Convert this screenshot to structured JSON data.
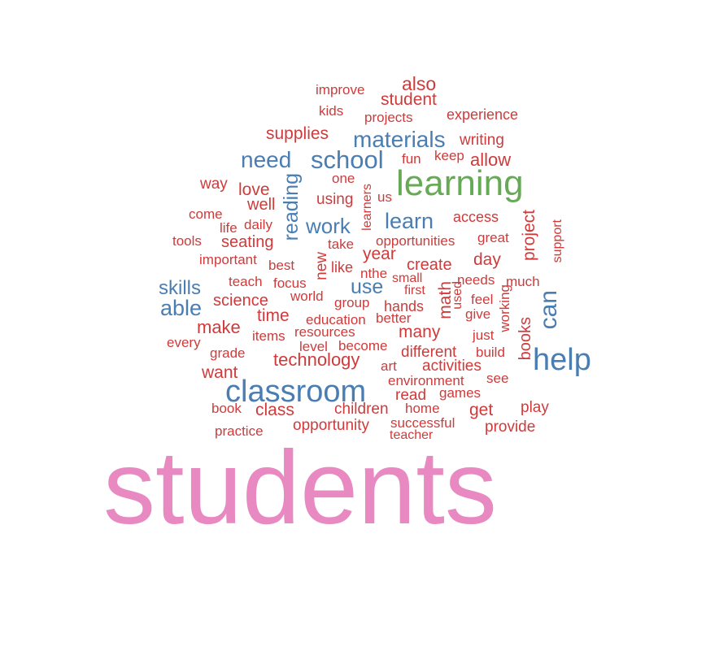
{
  "colors": {
    "top": "#e889c2",
    "high": "#66aa55",
    "mid": "#4a7eb3",
    "low": "#d03a3a",
    "background": "#ffffff"
  },
  "words": [
    {
      "text": "students",
      "tier": "top"
    },
    {
      "text": "learning",
      "tier": "high"
    },
    {
      "text": "classroom",
      "tier": "mid"
    },
    {
      "text": "help",
      "tier": "mid"
    },
    {
      "text": "school",
      "tier": "mid"
    },
    {
      "text": "materials",
      "tier": "mid"
    },
    {
      "text": "need",
      "tier": "mid"
    },
    {
      "text": "can",
      "tier": "mid"
    },
    {
      "text": "able",
      "tier": "mid"
    },
    {
      "text": "skills",
      "tier": "mid"
    },
    {
      "text": "learn",
      "tier": "mid"
    },
    {
      "text": "work",
      "tier": "mid"
    },
    {
      "text": "use",
      "tier": "mid"
    },
    {
      "text": "reading",
      "tier": "mid"
    },
    {
      "text": "also",
      "tier": "low"
    },
    {
      "text": "student",
      "tier": "low"
    },
    {
      "text": "improve",
      "tier": "low"
    },
    {
      "text": "kids",
      "tier": "low"
    },
    {
      "text": "projects",
      "tier": "low"
    },
    {
      "text": "experience",
      "tier": "low"
    },
    {
      "text": "supplies",
      "tier": "low"
    },
    {
      "text": "writing",
      "tier": "low"
    },
    {
      "text": "fun",
      "tier": "low"
    },
    {
      "text": "keep",
      "tier": "low"
    },
    {
      "text": "allow",
      "tier": "low"
    },
    {
      "text": "way",
      "tier": "low"
    },
    {
      "text": "love",
      "tier": "low"
    },
    {
      "text": "one",
      "tier": "low"
    },
    {
      "text": "well",
      "tier": "low"
    },
    {
      "text": "using",
      "tier": "low"
    },
    {
      "text": "us",
      "tier": "low"
    },
    {
      "text": "learners",
      "tier": "low"
    },
    {
      "text": "come",
      "tier": "low"
    },
    {
      "text": "life",
      "tier": "low"
    },
    {
      "text": "daily",
      "tier": "low"
    },
    {
      "text": "access",
      "tier": "low"
    },
    {
      "text": "tools",
      "tier": "low"
    },
    {
      "text": "seating",
      "tier": "low"
    },
    {
      "text": "take",
      "tier": "low"
    },
    {
      "text": "opportunities",
      "tier": "low"
    },
    {
      "text": "great",
      "tier": "low"
    },
    {
      "text": "project",
      "tier": "low"
    },
    {
      "text": "support",
      "tier": "low"
    },
    {
      "text": "important",
      "tier": "low"
    },
    {
      "text": "best",
      "tier": "low"
    },
    {
      "text": "new",
      "tier": "low"
    },
    {
      "text": "year",
      "tier": "low"
    },
    {
      "text": "like",
      "tier": "low"
    },
    {
      "text": "create",
      "tier": "low"
    },
    {
      "text": "day",
      "tier": "low"
    },
    {
      "text": "teach",
      "tier": "low"
    },
    {
      "text": "focus",
      "tier": "low"
    },
    {
      "text": "nthe",
      "tier": "low"
    },
    {
      "text": "small",
      "tier": "low"
    },
    {
      "text": "needs",
      "tier": "low"
    },
    {
      "text": "much",
      "tier": "low"
    },
    {
      "text": "science",
      "tier": "low"
    },
    {
      "text": "world",
      "tier": "low"
    },
    {
      "text": "first",
      "tier": "low"
    },
    {
      "text": "math",
      "tier": "low"
    },
    {
      "text": "feel",
      "tier": "low"
    },
    {
      "text": "time",
      "tier": "low"
    },
    {
      "text": "group",
      "tier": "low"
    },
    {
      "text": "hands",
      "tier": "low"
    },
    {
      "text": "used",
      "tier": "low"
    },
    {
      "text": "give",
      "tier": "low"
    },
    {
      "text": "working",
      "tier": "low"
    },
    {
      "text": "make",
      "tier": "low"
    },
    {
      "text": "education",
      "tier": "low"
    },
    {
      "text": "better",
      "tier": "low"
    },
    {
      "text": "books",
      "tier": "low"
    },
    {
      "text": "items",
      "tier": "low"
    },
    {
      "text": "resources",
      "tier": "low"
    },
    {
      "text": "many",
      "tier": "low"
    },
    {
      "text": "just",
      "tier": "low"
    },
    {
      "text": "every",
      "tier": "low"
    },
    {
      "text": "level",
      "tier": "low"
    },
    {
      "text": "become",
      "tier": "low"
    },
    {
      "text": "build",
      "tier": "low"
    },
    {
      "text": "grade",
      "tier": "low"
    },
    {
      "text": "technology",
      "tier": "low"
    },
    {
      "text": "different",
      "tier": "low"
    },
    {
      "text": "art",
      "tier": "low"
    },
    {
      "text": "activities",
      "tier": "low"
    },
    {
      "text": "want",
      "tier": "low"
    },
    {
      "text": "see",
      "tier": "low"
    },
    {
      "text": "environment",
      "tier": "low"
    },
    {
      "text": "read",
      "tier": "low"
    },
    {
      "text": "games",
      "tier": "low"
    },
    {
      "text": "play",
      "tier": "low"
    },
    {
      "text": "book",
      "tier": "low"
    },
    {
      "text": "class",
      "tier": "low"
    },
    {
      "text": "children",
      "tier": "low"
    },
    {
      "text": "home",
      "tier": "low"
    },
    {
      "text": "get",
      "tier": "low"
    },
    {
      "text": "opportunity",
      "tier": "low"
    },
    {
      "text": "successful",
      "tier": "low"
    },
    {
      "text": "provide",
      "tier": "low"
    },
    {
      "text": "practice",
      "tier": "low"
    },
    {
      "text": "teacher",
      "tier": "low"
    }
  ]
}
